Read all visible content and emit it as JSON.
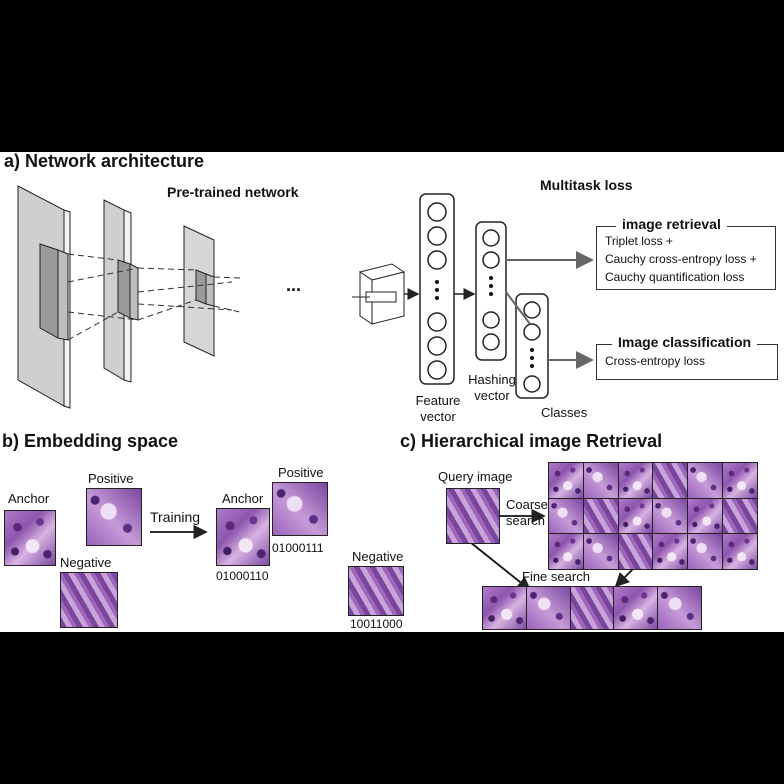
{
  "section_a": {
    "title": "a) Network architecture",
    "pretrained_label": "Pre-trained network",
    "ellipsis": "...",
    "multitask_label": "Multitask loss",
    "feature_vector_label": "Feature vector",
    "hashing_vector_label": "Hashing vector",
    "classes_label": "Classes",
    "retrieval_box": {
      "title": "image retrieval",
      "lines": [
        "Triplet loss +",
        "Cauchy cross-entropy loss +",
        "Cauchy quantification loss"
      ]
    },
    "classification_box": {
      "title": "Image classification",
      "lines": [
        "Cross-entropy loss"
      ]
    }
  },
  "section_b": {
    "title": "b)  Embedding space",
    "anchor_label": "Anchor",
    "positive_label": "Positive",
    "negative_label": "Negative",
    "training_label": "Training",
    "anchor_label_2": "Anchor",
    "positive_label_2": "Positive",
    "negative_label_2": "Negative",
    "anchor_code": "01000110",
    "positive_code": "01000111",
    "negative_code": "10011000"
  },
  "section_c": {
    "title": "c) Hierarchical image Retrieval",
    "query_label": "Query image",
    "coarse_label_1": "Coarse",
    "coarse_label_2": "search",
    "fine_label": "Fine search"
  },
  "colors": {
    "tissue_purple": "#8e55ae",
    "line_gray": "#555555"
  }
}
